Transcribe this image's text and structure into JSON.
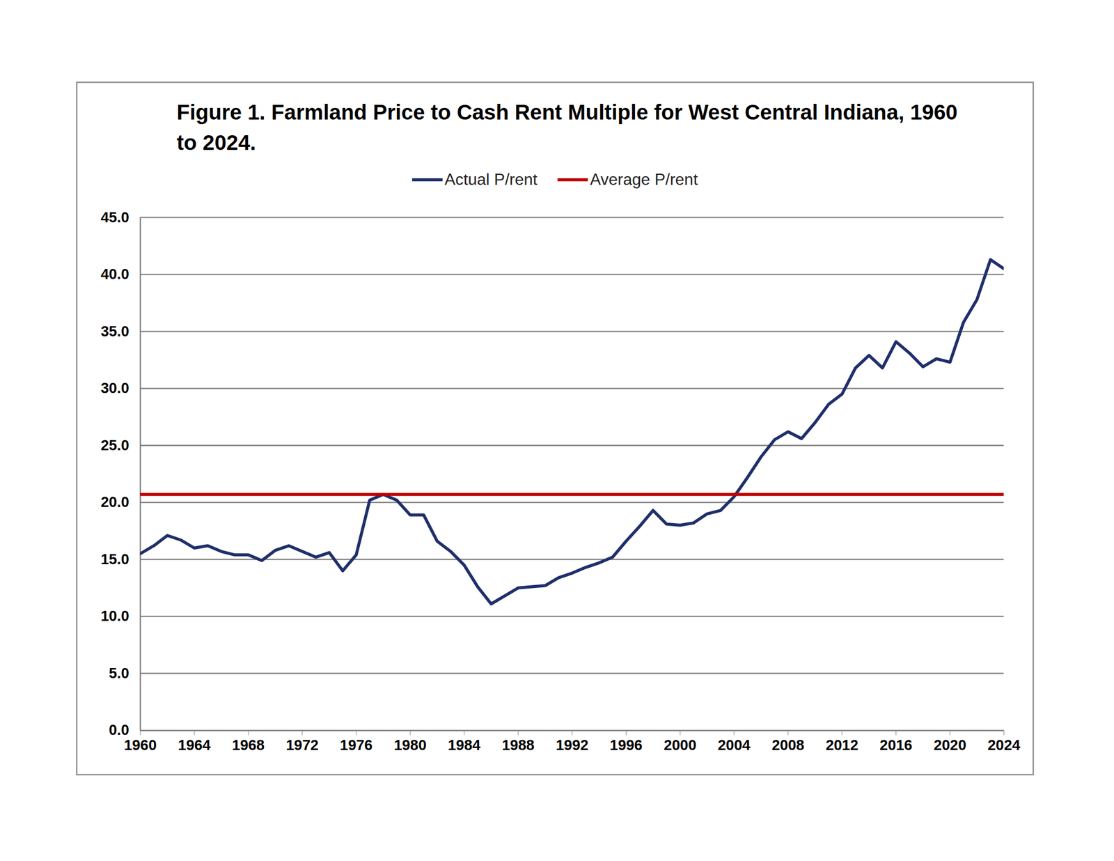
{
  "chart_data": {
    "type": "line",
    "title": "Figure 1.  Farmland Price to Cash Rent Multiple for West Central Indiana, 1960 to 2024.",
    "x": [
      1960,
      1961,
      1962,
      1963,
      1964,
      1965,
      1966,
      1967,
      1968,
      1969,
      1970,
      1971,
      1972,
      1973,
      1974,
      1975,
      1976,
      1977,
      1978,
      1979,
      1980,
      1981,
      1982,
      1983,
      1984,
      1985,
      1986,
      1987,
      1988,
      1989,
      1990,
      1991,
      1992,
      1993,
      1994,
      1995,
      1996,
      1997,
      1998,
      1999,
      2000,
      2001,
      2002,
      2003,
      2004,
      2005,
      2006,
      2007,
      2008,
      2009,
      2010,
      2011,
      2012,
      2013,
      2014,
      2015,
      2016,
      2017,
      2018,
      2019,
      2020,
      2021,
      2022,
      2023,
      2024
    ],
    "series": [
      {
        "name": "Actual P/rent",
        "color": "#1f2f6b",
        "values": [
          15.5,
          16.2,
          17.1,
          16.7,
          16.0,
          16.2,
          15.7,
          15.4,
          15.4,
          14.9,
          15.8,
          16.2,
          15.7,
          15.2,
          15.6,
          14.0,
          15.4,
          20.2,
          20.7,
          20.2,
          18.9,
          18.9,
          16.6,
          15.7,
          14.5,
          12.6,
          11.1,
          11.8,
          12.5,
          12.6,
          12.7,
          13.4,
          13.8,
          14.3,
          14.7,
          15.2,
          16.6,
          17.9,
          19.3,
          18.1,
          18.0,
          18.2,
          19.0,
          19.3,
          20.5,
          22.2,
          24.0,
          25.5,
          26.2,
          25.6,
          27.0,
          28.6,
          29.5,
          31.8,
          32.9,
          31.8,
          34.1,
          33.1,
          31.9,
          32.6,
          32.3,
          35.8,
          37.8,
          41.3,
          40.5
        ]
      },
      {
        "name": "Average P/rent",
        "color": "#c00000",
        "values": [
          20.7,
          20.7,
          20.7,
          20.7,
          20.7,
          20.7,
          20.7,
          20.7,
          20.7,
          20.7,
          20.7,
          20.7,
          20.7,
          20.7,
          20.7,
          20.7,
          20.7,
          20.7,
          20.7,
          20.7,
          20.7,
          20.7,
          20.7,
          20.7,
          20.7,
          20.7,
          20.7,
          20.7,
          20.7,
          20.7,
          20.7,
          20.7,
          20.7,
          20.7,
          20.7,
          20.7,
          20.7,
          20.7,
          20.7,
          20.7,
          20.7,
          20.7,
          20.7,
          20.7,
          20.7,
          20.7,
          20.7,
          20.7,
          20.7,
          20.7,
          20.7,
          20.7,
          20.7,
          20.7,
          20.7,
          20.7,
          20.7,
          20.7,
          20.7,
          20.7,
          20.7,
          20.7,
          20.7,
          20.7,
          20.7
        ]
      }
    ],
    "xlim": [
      1960,
      2024
    ],
    "xticks": [
      1960,
      1964,
      1968,
      1972,
      1976,
      1980,
      1984,
      1988,
      1992,
      1996,
      2000,
      2004,
      2008,
      2012,
      2016,
      2020,
      2024
    ],
    "ylim": [
      0,
      45
    ],
    "yticks": [
      {
        "value": 0,
        "label": "0.0"
      },
      {
        "value": 5,
        "label": "5.0"
      },
      {
        "value": 10,
        "label": "10.0"
      },
      {
        "value": 15,
        "label": "15.0"
      },
      {
        "value": 20,
        "label": "20.0"
      },
      {
        "value": 25,
        "label": "25.0"
      },
      {
        "value": 30,
        "label": "30.0"
      },
      {
        "value": 35,
        "label": "35.0"
      },
      {
        "value": 40,
        "label": "40.0"
      },
      {
        "value": 45,
        "label": "45.0"
      }
    ],
    "grid": true,
    "legend": "top"
  }
}
